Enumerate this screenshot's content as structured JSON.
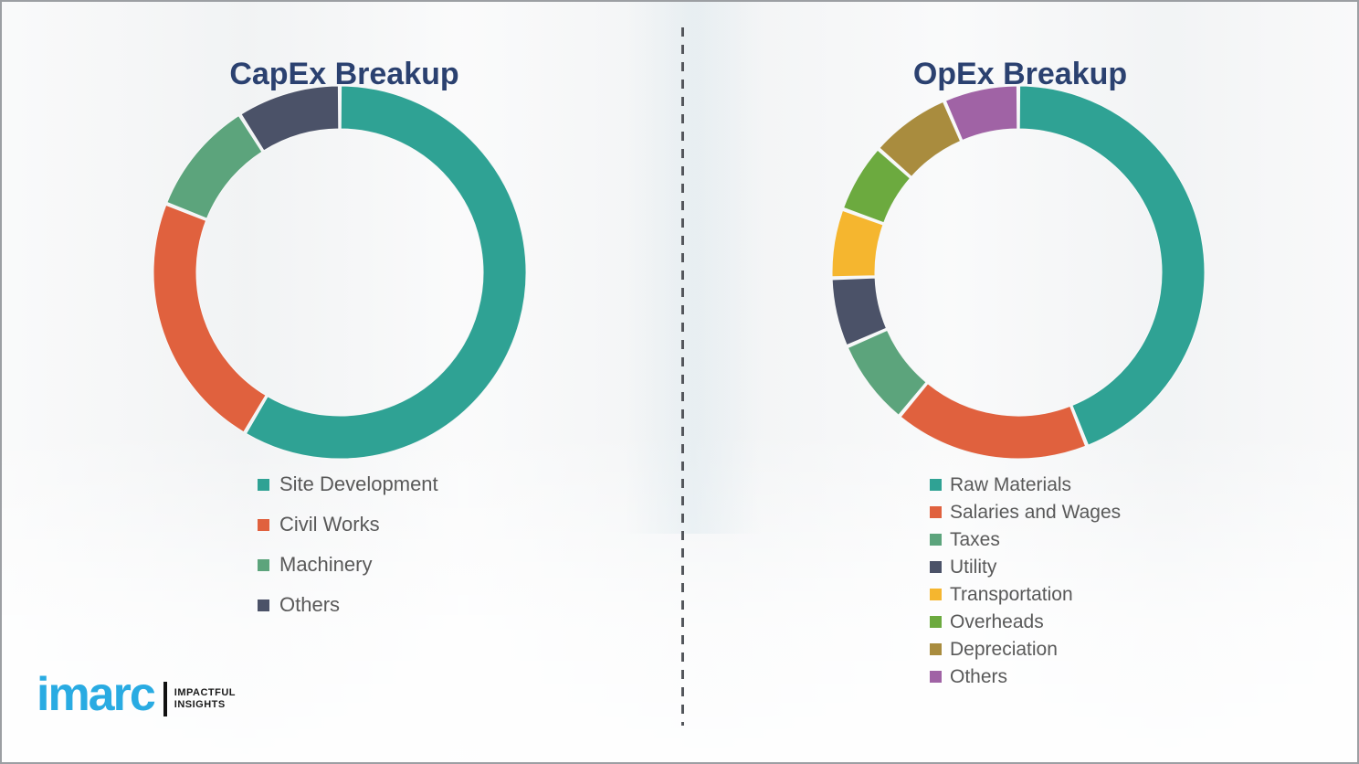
{
  "page": {
    "background_color": "#f3f4f5",
    "divider_color": "#54575c",
    "title_color": "#2b4170",
    "legend_text_color": "#595959"
  },
  "logo": {
    "brand": "imarc",
    "tagline_line1": "IMPACTFUL",
    "tagline_line2": "INSIGHTS",
    "brand_color": "#29abe2",
    "tagline_color": "#1a1a1a"
  },
  "chart_data": [
    {
      "type": "pie",
      "variant": "donut",
      "title": "CapEx Breakup",
      "legend_position": "below-left",
      "start_angle_deg": 0,
      "direction": "clockwise",
      "segments": [
        {
          "label": "Site Development",
          "value": 58.5,
          "color": "#2FA294"
        },
        {
          "label": "Civil Works",
          "value": 22.5,
          "color": "#E0613E"
        },
        {
          "label": "Machinery",
          "value": 10.0,
          "color": "#5CA47C"
        },
        {
          "label": "Others",
          "value": 9.0,
          "color": "#4B5268"
        }
      ]
    },
    {
      "type": "pie",
      "variant": "donut",
      "title": "OpEx Breakup",
      "legend_position": "below-left",
      "start_angle_deg": 0,
      "direction": "clockwise",
      "segments": [
        {
          "label": "Raw Materials",
          "value": 44.0,
          "color": "#2FA294"
        },
        {
          "label": "Salaries and Wages",
          "value": 17.0,
          "color": "#E0613E"
        },
        {
          "label": "Taxes",
          "value": 7.5,
          "color": "#5CA47C"
        },
        {
          "label": "Utility",
          "value": 6.0,
          "color": "#4B5268"
        },
        {
          "label": "Transportation",
          "value": 6.0,
          "color": "#F5B62F"
        },
        {
          "label": "Overheads",
          "value": 6.0,
          "color": "#6CAA3F"
        },
        {
          "label": "Depreciation",
          "value": 7.0,
          "color": "#A98C3E"
        },
        {
          "label": "Others",
          "value": 6.5,
          "color": "#A063A5"
        }
      ]
    }
  ]
}
